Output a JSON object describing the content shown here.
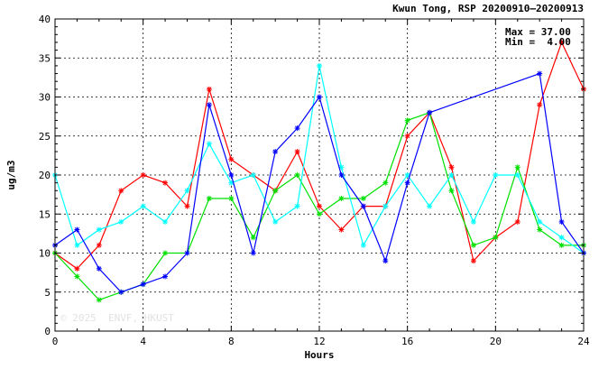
{
  "chart_data": {
    "type": "line",
    "title": "Kwun Tong, RSP 20200910–20200913",
    "xlabel": "Hours",
    "ylabel": "ug/m3",
    "xlim": [
      0,
      24
    ],
    "ylim": [
      0,
      40
    ],
    "xticks": [
      "0",
      "4",
      "8",
      "12",
      "16",
      "20",
      "24"
    ],
    "yticks": [
      "0",
      "5",
      "10",
      "15",
      "20",
      "25",
      "30",
      "35",
      "40"
    ],
    "grid": true,
    "annotations": {
      "max_label": "Max = 37.00",
      "min_label": "Min =  4.00"
    },
    "watermark": "© 2025  ENVF, HKUST",
    "series": [
      {
        "color": "#ff0000",
        "x": [
          0,
          1,
          2,
          3,
          4,
          5,
          6,
          7,
          8,
          9,
          10,
          11,
          12,
          13,
          14,
          15,
          16,
          17,
          18,
          19,
          20,
          21,
          22,
          23,
          24
        ],
        "values": [
          10,
          8,
          11,
          18,
          20,
          19,
          16,
          31,
          22,
          20,
          18,
          23,
          16,
          13,
          16,
          16,
          25,
          28,
          21,
          9,
          12,
          14,
          29,
          37,
          31
        ]
      },
      {
        "color": "#00e000",
        "x": [
          0,
          1,
          2,
          3,
          4,
          5,
          6,
          7,
          8,
          9,
          10,
          11,
          12,
          13,
          14,
          15,
          16,
          17,
          18,
          19,
          20,
          21,
          22,
          23,
          24
        ],
        "values": [
          10,
          7,
          4,
          5,
          6,
          10,
          10,
          17,
          17,
          12,
          18,
          20,
          15,
          17,
          17,
          19,
          27,
          28,
          18,
          11,
          12,
          21,
          13,
          11,
          11
        ]
      },
      {
        "color": "#00ffff",
        "x": [
          0,
          1,
          2,
          3,
          4,
          5,
          6,
          7,
          8,
          9,
          10,
          11,
          12,
          13,
          14,
          15,
          16,
          17,
          18,
          19,
          20,
          21,
          22,
          23,
          24
        ],
        "values": [
          20,
          11,
          13,
          14,
          16,
          14,
          18,
          24,
          19,
          20,
          14,
          16,
          34,
          21,
          11,
          16,
          20,
          16,
          20,
          14,
          20,
          20,
          14,
          12,
          10
        ]
      },
      {
        "color": "#0000ff",
        "x": [
          0,
          1,
          2,
          3,
          4,
          5,
          6,
          7,
          8,
          9,
          10,
          11,
          12,
          13,
          14,
          15,
          16,
          17,
          22,
          23,
          24
        ],
        "values": [
          11,
          13,
          8,
          5,
          6,
          7,
          10,
          29,
          20,
          10,
          23,
          26,
          30,
          20,
          16,
          9,
          19,
          28,
          33,
          14,
          10
        ]
      }
    ]
  }
}
